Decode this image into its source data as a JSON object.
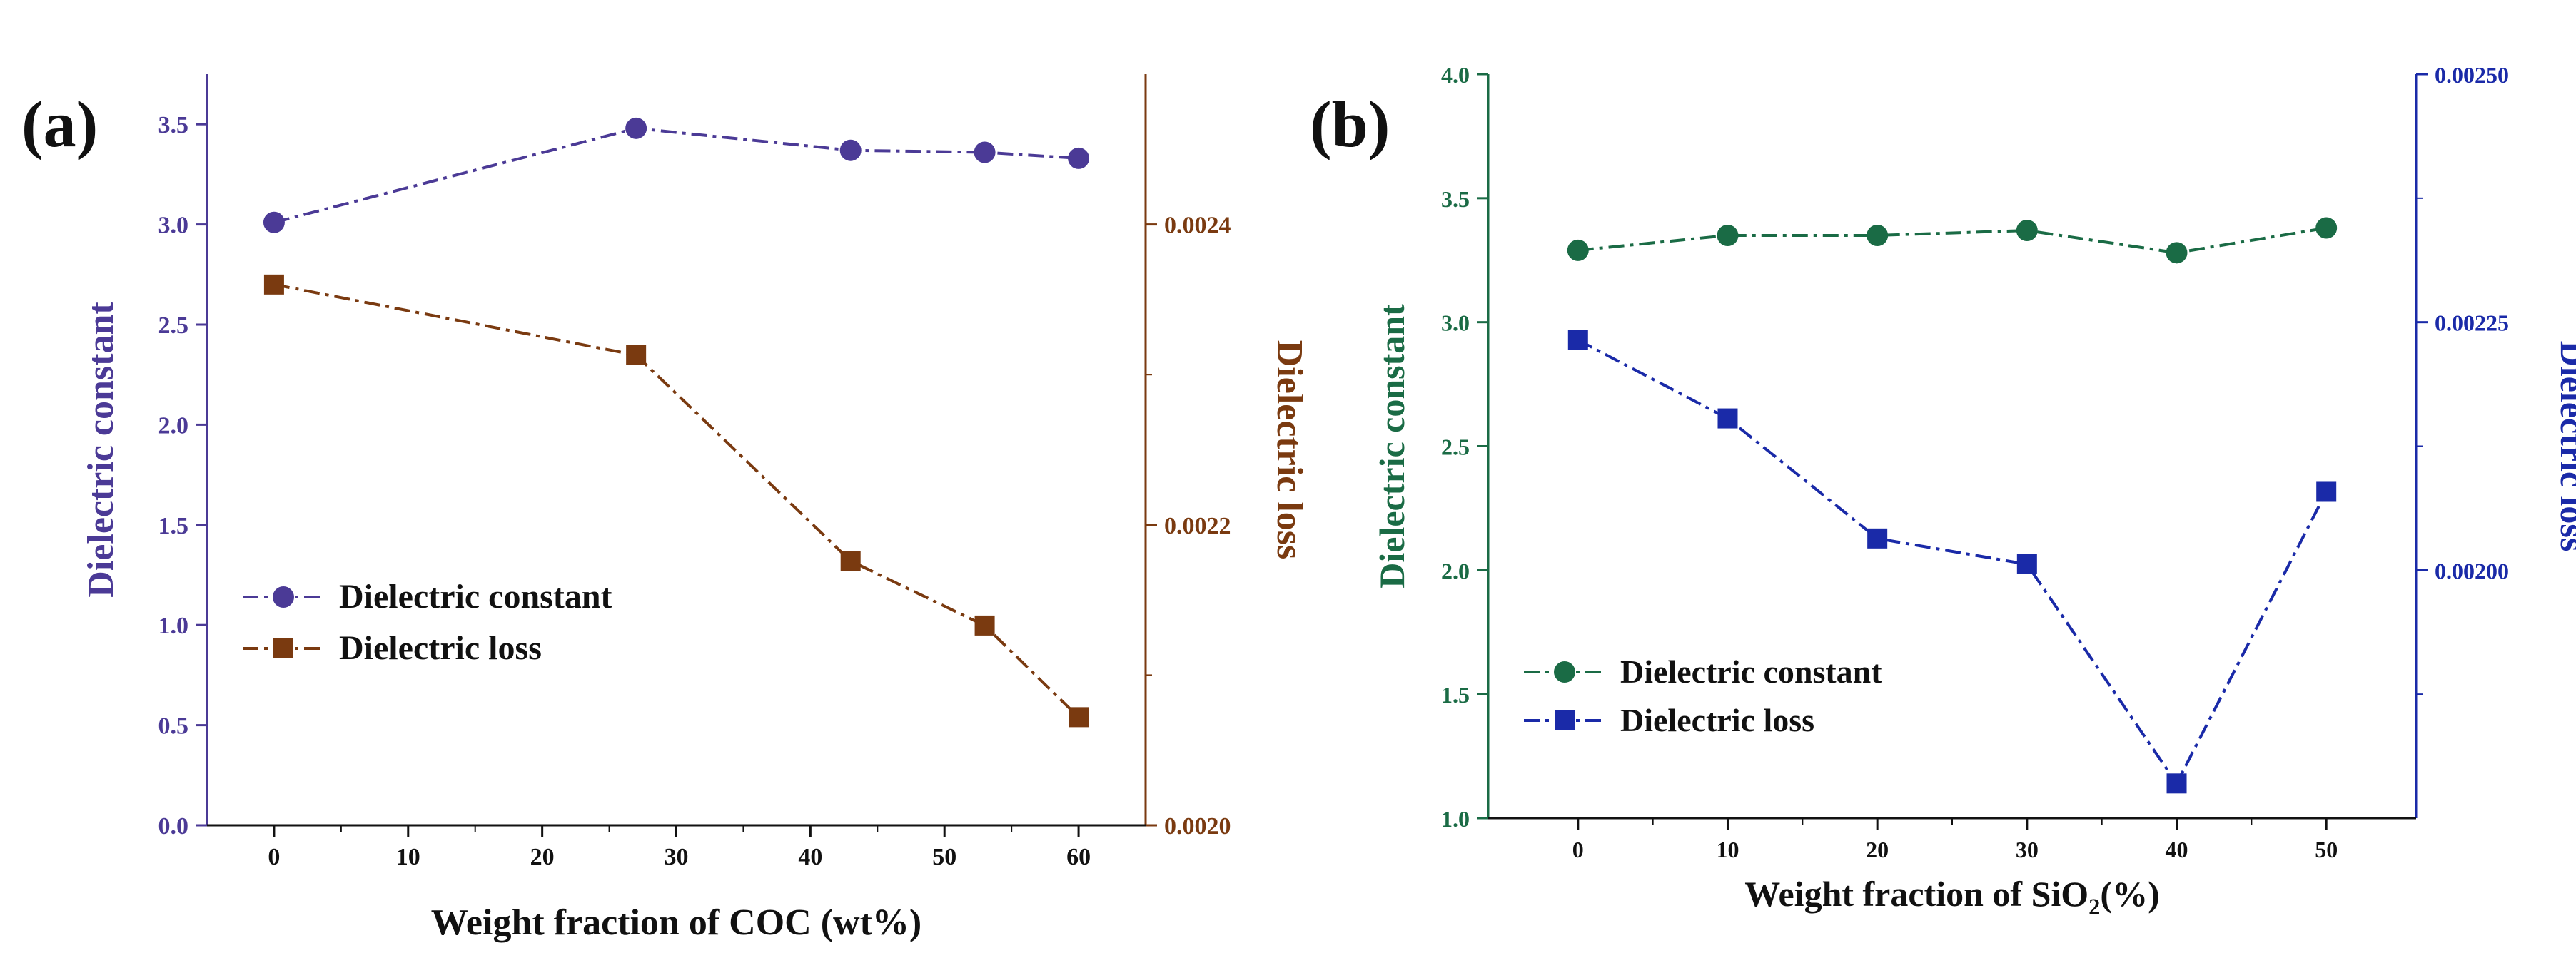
{
  "chart_data": [
    {
      "type": "line",
      "panel_label": "(a)",
      "xlabel": "Weight fraction of COC (wt%)",
      "xlim": [
        -5,
        65
      ],
      "xticks": [
        0,
        10,
        20,
        30,
        40,
        50,
        60
      ],
      "y_left": {
        "label": "Dielectric constant",
        "lim": [
          0.0,
          3.75
        ],
        "ticks": [
          "0.0",
          "0.5",
          "1.0",
          "1.5",
          "2.0",
          "2.5",
          "3.0",
          "3.5"
        ],
        "color": "#4b3a96"
      },
      "y_right": {
        "label": "Dielectric loss",
        "lim": [
          0.002,
          0.0025
        ],
        "ticks": [
          "0.0020",
          "0.0022",
          "0.0024"
        ],
        "color": "#7a3a10"
      },
      "series": [
        {
          "name": "Dielectric constant",
          "axis": "left",
          "marker": "circle",
          "color": "#4b3a96",
          "x": [
            0,
            27,
            43,
            53,
            60
          ],
          "y": [
            3.01,
            3.48,
            3.37,
            3.36,
            3.33
          ]
        },
        {
          "name": "Dielectric loss",
          "axis": "right",
          "marker": "square",
          "color": "#7a3a10",
          "x": [
            0,
            27,
            43,
            53,
            60
          ],
          "y": [
            0.00236,
            0.002313,
            0.002176,
            0.002133,
            0.002072
          ]
        }
      ],
      "legend": "lower-left"
    },
    {
      "type": "line",
      "panel_label": "(b)",
      "xlabel_main": "Weight fraction of SiO",
      "xlabel_sub": "2",
      "xlabel_tail": "(%)",
      "xlim": [
        -6,
        56
      ],
      "xticks": [
        0,
        10,
        20,
        30,
        40,
        50
      ],
      "y_left": {
        "label": "Dielectric constant",
        "lim": [
          1.0,
          4.0
        ],
        "ticks": [
          "1.0",
          "1.5",
          "2.0",
          "2.5",
          "3.0",
          "3.5",
          "4.0"
        ],
        "color": "#1a6b45"
      },
      "y_right": {
        "label": "Dielectric loss",
        "lim": [
          0.00175,
          0.0025
        ],
        "ticks": [
          "0.00200",
          "0.00225",
          "0.00250"
        ],
        "color": "#1a2aa8"
      },
      "series": [
        {
          "name": "Dielectric constant",
          "axis": "left",
          "marker": "circle",
          "color": "#1a6b45",
          "x": [
            0,
            10,
            20,
            30,
            40,
            50
          ],
          "y": [
            3.29,
            3.35,
            3.35,
            3.37,
            3.28,
            3.38
          ]
        },
        {
          "name": "Dielectric loss",
          "axis": "right",
          "marker": "square",
          "color": "#1a2aa8",
          "x": [
            0,
            10,
            20,
            30,
            40,
            50
          ],
          "y": [
            0.002232,
            0.002153,
            0.002032,
            0.002006,
            0.001785,
            0.002079
          ]
        }
      ],
      "legend": "lower-left"
    }
  ]
}
